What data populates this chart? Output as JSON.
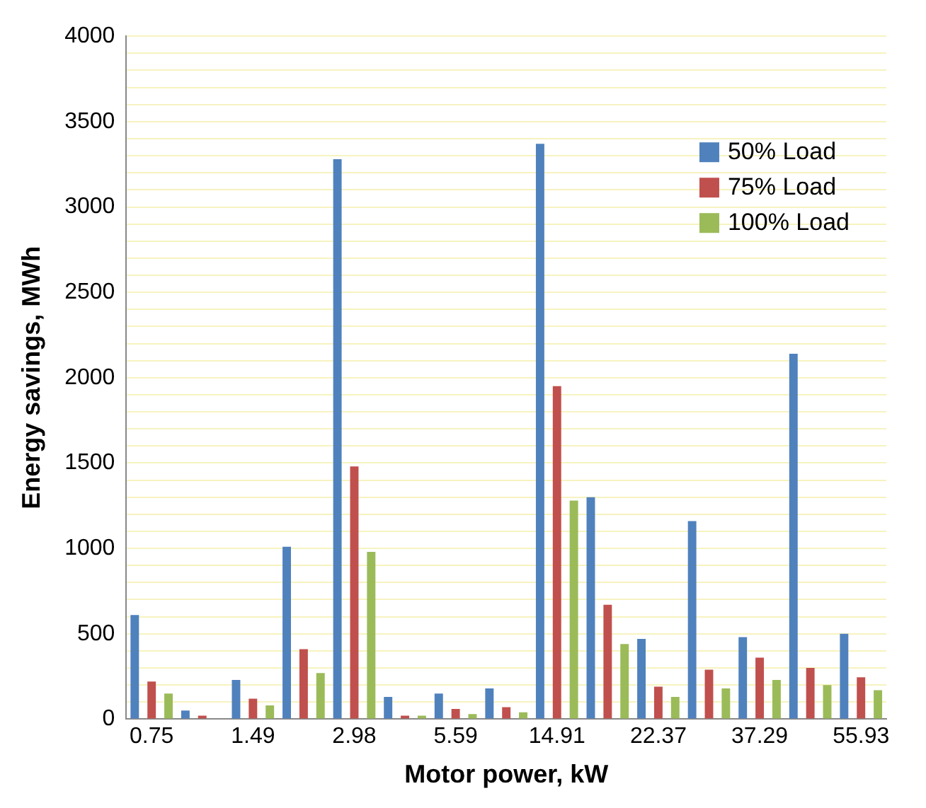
{
  "chart_data": {
    "type": "bar",
    "xlabel": "Motor power, kW",
    "ylabel": "Energy savings, MWh",
    "categories": [
      "0.75",
      null,
      "1.49",
      null,
      "2.98",
      null,
      "5.59",
      null,
      "14.91",
      null,
      "22.37",
      null,
      "37.29",
      null,
      "55.93"
    ],
    "series": [
      {
        "name": "50% Load",
        "color": "#4f81bd",
        "values": [
          610,
          50,
          230,
          1010,
          3280,
          130,
          150,
          180,
          3370,
          1300,
          470,
          1160,
          480,
          2140,
          500
        ]
      },
      {
        "name": "75% Load",
        "color": "#c0504d",
        "values": [
          220,
          20,
          120,
          410,
          1480,
          20,
          60,
          70,
          1950,
          670,
          190,
          290,
          360,
          300,
          245
        ]
      },
      {
        "name": "100% Load",
        "color": "#9bbb59",
        "values": [
          150,
          null,
          80,
          270,
          980,
          20,
          30,
          40,
          1280,
          440,
          130,
          180,
          230,
          200,
          170
        ]
      }
    ],
    "ylim": [
      0,
      4000
    ],
    "yticks": [
      0,
      {
        "value": 100,
        "label": null
      },
      {
        "value": 200,
        "label": null
      },
      {
        "value": 300,
        "label": null
      },
      {
        "value": 400,
        "label": null
      },
      500,
      {
        "value": 600,
        "label": null
      },
      {
        "value": 700,
        "label": null
      },
      {
        "value": 800,
        "label": null
      },
      {
        "value": 900,
        "label": null
      },
      1000,
      {
        "value": 1100,
        "label": null
      },
      {
        "value": 1200,
        "label": null
      },
      {
        "value": 1300,
        "label": null
      },
      {
        "value": 1400,
        "label": null
      },
      1500,
      {
        "value": 1600,
        "label": null
      },
      {
        "value": 1700,
        "label": null
      },
      {
        "value": 1800,
        "label": null
      },
      {
        "value": 1900,
        "label": null
      },
      2000,
      {
        "value": 2100,
        "label": null
      },
      {
        "value": 2200,
        "label": null
      },
      {
        "value": 2300,
        "label": null
      },
      {
        "value": 2400,
        "label": null
      },
      2500,
      {
        "value": 2600,
        "label": null
      },
      {
        "value": 2700,
        "label": null
      },
      {
        "value": 2800,
        "label": null
      },
      {
        "value": 2900,
        "label": null
      },
      3000,
      {
        "value": 3100,
        "label": null
      },
      {
        "value": 3200,
        "label": null
      },
      {
        "value": 3300,
        "label": null
      },
      {
        "value": 3400,
        "label": null
      },
      3500,
      {
        "value": 3600,
        "label": null
      },
      {
        "value": 3700,
        "label": null
      },
      {
        "value": 3800,
        "label": null
      },
      {
        "value": 3900,
        "label": null
      },
      4000
    ],
    "grid": "y",
    "legend": "top right"
  }
}
